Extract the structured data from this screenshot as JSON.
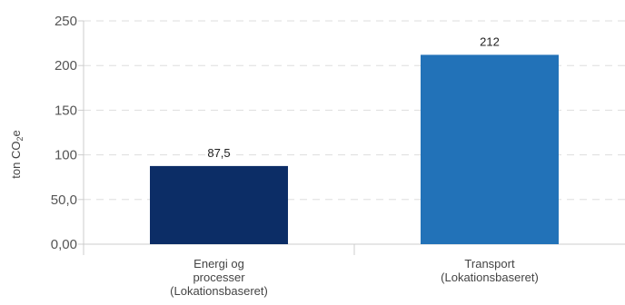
{
  "chart_data": {
    "type": "bar",
    "title": "",
    "xlabel": "",
    "ylabel_main": "ton CO",
    "ylabel_sub": "2",
    "ylabel_tail": "e",
    "ylim": [
      0,
      250
    ],
    "yticks": [
      0,
      50,
      100,
      150,
      200,
      250
    ],
    "ytick_labels": [
      "0,00",
      "50,0",
      "100",
      "150",
      "200",
      "250"
    ],
    "categories": [
      [
        "Energi og",
        "processer",
        "(Lokationsbaseret)"
      ],
      [
        "Transport",
        "(Lokationsbaseret)"
      ]
    ],
    "values": [
      87.5,
      212
    ],
    "value_labels": [
      "87,5",
      "212"
    ],
    "colors": [
      "#0c2d66",
      "#2272b8"
    ],
    "grid": true,
    "legend": "none"
  }
}
